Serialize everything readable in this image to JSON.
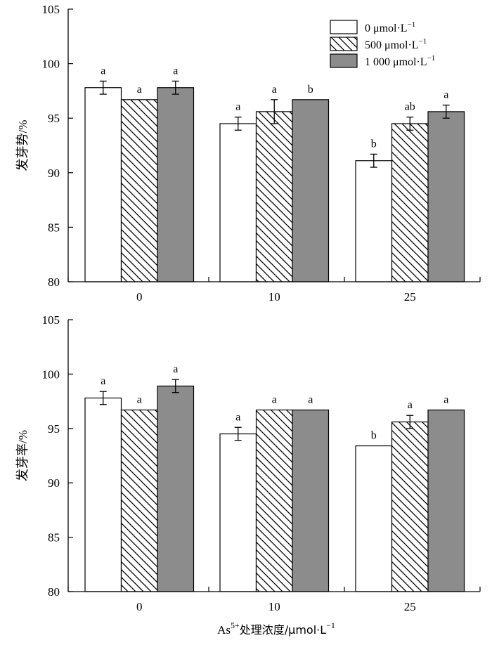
{
  "colors": {
    "control": "#ffffff",
    "low": "#ffffff",
    "high": "#8c8c8c",
    "stroke": "#000000"
  },
  "xlabel": {
    "prefix": "As",
    "sup": "5+",
    "main": "处理浓度/μmol·L",
    "sup2": "−1"
  },
  "chart_data": [
    {
      "type": "bar",
      "categories": [
        "0",
        "10",
        "25"
      ],
      "ylabel": {
        "main": "发芽势",
        "unit": "/%"
      },
      "ylim": [
        80,
        105
      ],
      "yticks": [
        80,
        85,
        90,
        95,
        100,
        105
      ],
      "series": [
        {
          "name": "0 μmol·L",
          "sup": "−1",
          "pattern": "white",
          "values": [
            97.8,
            94.5,
            91.1
          ],
          "errors": [
            0.6,
            0.6,
            0.6
          ],
          "sig": [
            "a",
            "a",
            "b"
          ]
        },
        {
          "name": "500 μmol·L",
          "sup": "−1",
          "pattern": "hatch",
          "values": [
            96.7,
            95.6,
            94.5
          ],
          "errors": [
            0,
            1.1,
            0.6
          ],
          "sig": [
            "a",
            "a",
            "ab"
          ]
        },
        {
          "name": "1 000 μmol·L",
          "sup": "−1",
          "pattern": "gray",
          "values": [
            97.8,
            96.7,
            95.6
          ],
          "errors": [
            0.6,
            0,
            0.6
          ],
          "sig": [
            "a",
            "b",
            "a"
          ]
        }
      ]
    },
    {
      "type": "bar",
      "categories": [
        "0",
        "10",
        "25"
      ],
      "ylabel": {
        "main": "发芽率",
        "unit": "/%"
      },
      "ylim": [
        80,
        105
      ],
      "yticks": [
        80,
        85,
        90,
        95,
        100,
        105
      ],
      "series": [
        {
          "pattern": "white",
          "values": [
            97.8,
            94.5,
            93.4
          ],
          "errors": [
            0.6,
            0.6,
            0
          ],
          "sig": [
            "a",
            "a",
            "b"
          ]
        },
        {
          "pattern": "hatch",
          "values": [
            96.7,
            96.7,
            95.6
          ],
          "errors": [
            0,
            0,
            0.6
          ],
          "sig": [
            "a",
            "a",
            "a"
          ]
        },
        {
          "pattern": "gray",
          "values": [
            98.9,
            96.7,
            96.7
          ],
          "errors": [
            0.6,
            0,
            0
          ],
          "sig": [
            "a",
            "a",
            "a"
          ]
        }
      ]
    }
  ]
}
